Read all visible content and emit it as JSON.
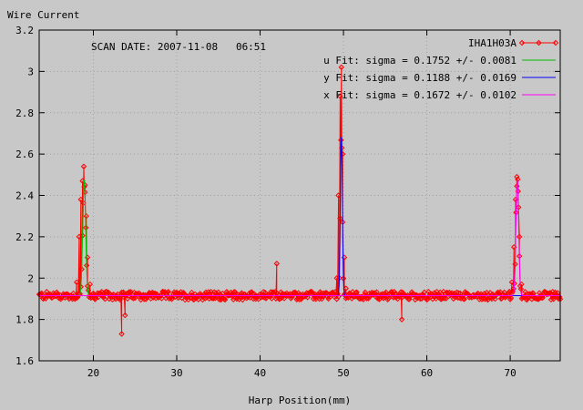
{
  "chart_data": {
    "type": "line",
    "title": "",
    "ylabel": "Wire Current",
    "xlabel": "Harp Position(mm)",
    "annotation": "SCAN DATE: 2007-11-08   06:51",
    "xlim": [
      13.5,
      76
    ],
    "ylim": [
      1.6,
      3.2
    ],
    "xticks": [
      20,
      30,
      40,
      50,
      60,
      70
    ],
    "yticks": [
      1.6,
      1.8,
      2.0,
      2.2,
      2.4,
      2.6,
      2.8,
      3.0,
      3.2
    ],
    "ytick_labels": [
      "1.6",
      "1.8",
      "2",
      "2.2",
      "2.4",
      "2.6",
      "2.8",
      "3",
      "3.2"
    ],
    "grid": true,
    "legend_position": "top-right",
    "series": [
      {
        "name": "IHA1H03A",
        "color": "#ff0000",
        "marker": "diamond",
        "baseline": 1.915,
        "noise": 0.02,
        "x": [
          18.0,
          18.3,
          18.5,
          18.7,
          18.85,
          19.0,
          19.15,
          19.3,
          19.6,
          42.0,
          49.2,
          49.4,
          49.6,
          49.75,
          49.9,
          50.1,
          50.3,
          70.2,
          70.45,
          70.65,
          70.8,
          70.95,
          71.1,
          71.35,
          23.4,
          23.8,
          57.0
        ],
        "y": [
          1.98,
          2.2,
          2.38,
          2.47,
          2.54,
          2.45,
          2.3,
          2.1,
          1.97,
          2.07,
          2.0,
          2.4,
          2.88,
          3.02,
          2.6,
          2.1,
          1.95,
          1.98,
          2.15,
          2.38,
          2.49,
          2.42,
          2.2,
          1.97,
          1.73,
          1.82,
          1.8
        ]
      },
      {
        "name": "u  Fit: sigma = 0.1752 +/- 0.0081",
        "color": "#00c000",
        "mu": 18.9,
        "sigma": 0.1752,
        "amplitude": 0.56,
        "baseline": 1.915
      },
      {
        "name": "y  Fit: sigma = 0.1188 +/- 0.0169",
        "color": "#0000ff",
        "mu": 49.75,
        "sigma": 0.1188,
        "amplitude": 0.77,
        "baseline": 1.915
      },
      {
        "name": "x  Fit: sigma = 0.1672 +/- 0.0102",
        "color": "#ff00ff",
        "mu": 70.85,
        "sigma": 0.1672,
        "amplitude": 0.56,
        "baseline": 1.915
      }
    ]
  }
}
